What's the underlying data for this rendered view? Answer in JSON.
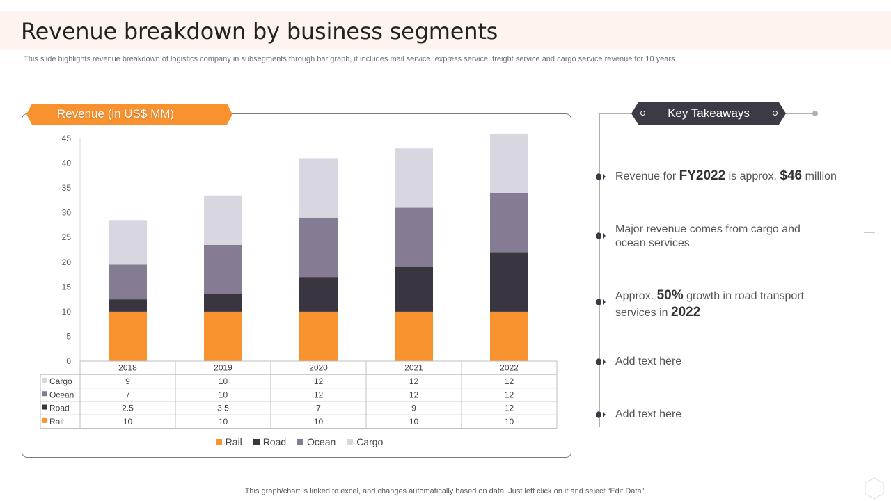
{
  "page": {
    "title": "Revenue breakdown by business segments",
    "subtitle": "This slide highlights revenue breakdown of logistics company in subsegments through bar graph, it includes mail service, express service, freight service and cargo service revenue for 10 years.",
    "footer_note": "This graph/chart is linked to excel,  and changes automatically based on data. Just left click on it and select “Edit Data”."
  },
  "chart_tab": {
    "label": "Revenue (in US$ MM)"
  },
  "colors": {
    "accent": "#f7922f",
    "rail": "#f7922f",
    "road": "#3a3640",
    "ocean": "#857b93",
    "cargo": "#d8d6df",
    "badge": "#3c3a44"
  },
  "chart_data": {
    "type": "bar",
    "stacked": true,
    "title": "Revenue (in US$ MM)",
    "categories": [
      "2018",
      "2019",
      "2020",
      "2021",
      "2022"
    ],
    "series": [
      {
        "name": "Rail",
        "values": [
          10,
          10,
          10,
          10,
          10
        ]
      },
      {
        "name": "Road",
        "values": [
          2.5,
          3.5,
          7,
          9,
          12
        ]
      },
      {
        "name": "Ocean",
        "values": [
          7,
          10,
          12,
          12,
          12
        ]
      },
      {
        "name": "Cargo",
        "values": [
          9,
          10,
          12,
          12,
          12
        ]
      }
    ],
    "table_rows": [
      {
        "name": "Cargo",
        "values": [
          "9",
          "10",
          "12",
          "12",
          "12"
        ]
      },
      {
        "name": "Ocean",
        "values": [
          "7",
          "10",
          "12",
          "12",
          "12"
        ]
      },
      {
        "name": "Road",
        "values": [
          "2.5",
          "3.5",
          "7",
          "9",
          "12"
        ]
      },
      {
        "name": "Rail",
        "values": [
          "10",
          "10",
          "10",
          "10",
          "10"
        ]
      }
    ],
    "ylim": [
      0,
      45
    ],
    "yticks": [
      "0",
      "5",
      "10",
      "15",
      "20",
      "25",
      "30",
      "35",
      "40",
      "45"
    ],
    "xlabel": "",
    "ylabel": "",
    "legend": [
      "Rail",
      "Road",
      "Ocean",
      "Cargo"
    ],
    "legend_position": "bottom",
    "grid": false
  },
  "takeaways": {
    "title": "Key Takeaways",
    "item1": {
      "pre": "Revenue  for ",
      "b1": "FY2022",
      "mid": " is approx. ",
      "b2": "$46",
      "post": " million"
    },
    "item2": {
      "line1": "Major revenue  comes from cargo and",
      "line2": "ocean services"
    },
    "item3": {
      "pre": "Approx. ",
      "b1": "50%",
      "mid": " growth  in road transport",
      "line2_pre": "services in ",
      "b2": "2022"
    },
    "item4": "Add text here",
    "item5": "Add text here"
  }
}
